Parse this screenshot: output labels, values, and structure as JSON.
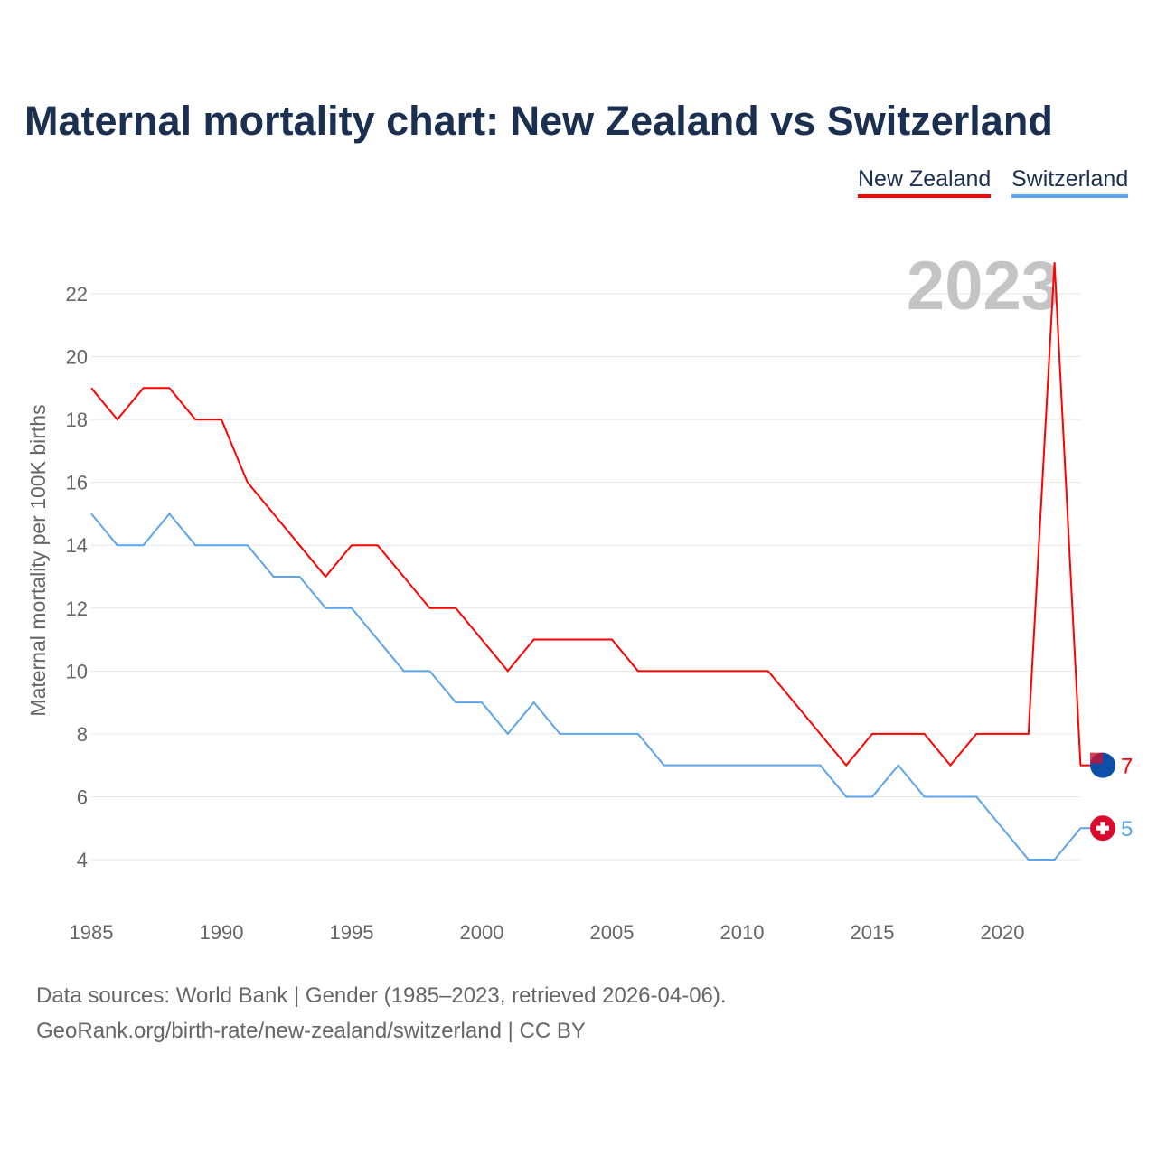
{
  "title": "Maternal mortality chart: New Zealand vs Switzerland",
  "legend": [
    {
      "label": "New Zealand",
      "color": "#ff0000"
    },
    {
      "label": "Switzerland",
      "color": "#5ba4f0"
    }
  ],
  "footer": {
    "line1": "Data sources: World Bank | Gender (1985–2023, retrieved 2026-04-06).",
    "line2": "GeoRank.org/birth-rate/new-zealand/switzerland | CC BY"
  },
  "chart_data": {
    "type": "line",
    "title": "Maternal mortality chart: New Zealand vs Switzerland",
    "ylabel": "Maternal mortality per 100K births",
    "xlabel": "",
    "year_label": "2023",
    "xlim": [
      1985,
      2023
    ],
    "ylim": [
      3,
      23
    ],
    "x_ticks": [
      "1985",
      "1990",
      "1995",
      "2000",
      "2005",
      "2010",
      "2015",
      "2020"
    ],
    "y_ticks": [
      "4",
      "6",
      "8",
      "10",
      "12",
      "14",
      "16",
      "18",
      "20",
      "22"
    ],
    "x": [
      1985,
      1986,
      1987,
      1988,
      1989,
      1990,
      1991,
      1992,
      1993,
      1994,
      1995,
      1996,
      1997,
      1998,
      1999,
      2000,
      2001,
      2002,
      2003,
      2004,
      2005,
      2006,
      2007,
      2008,
      2009,
      2010,
      2011,
      2012,
      2013,
      2014,
      2015,
      2016,
      2017,
      2018,
      2019,
      2020,
      2021,
      2022,
      2023
    ],
    "series": [
      {
        "name": "New Zealand",
        "color": "#ff0000",
        "end_label": "7",
        "values": [
          19,
          18,
          19,
          19,
          18,
          18,
          16,
          15,
          14,
          13,
          14,
          14,
          13,
          12,
          12,
          11,
          10,
          11,
          11,
          11,
          11,
          10,
          10,
          10,
          10,
          10,
          10,
          9,
          8,
          7,
          8,
          8,
          8,
          7,
          8,
          8,
          8,
          23,
          7
        ]
      },
      {
        "name": "Switzerland",
        "color": "#5ba4f0",
        "end_label": "5",
        "values": [
          15,
          14,
          14,
          15,
          14,
          14,
          14,
          13,
          13,
          12,
          12,
          11,
          10,
          10,
          9,
          9,
          8,
          9,
          8,
          8,
          8,
          8,
          7,
          7,
          7,
          7,
          7,
          7,
          7,
          6,
          6,
          7,
          6,
          6,
          6,
          5,
          4,
          4,
          5
        ]
      }
    ],
    "grid": true,
    "legend_position": "top-right"
  }
}
